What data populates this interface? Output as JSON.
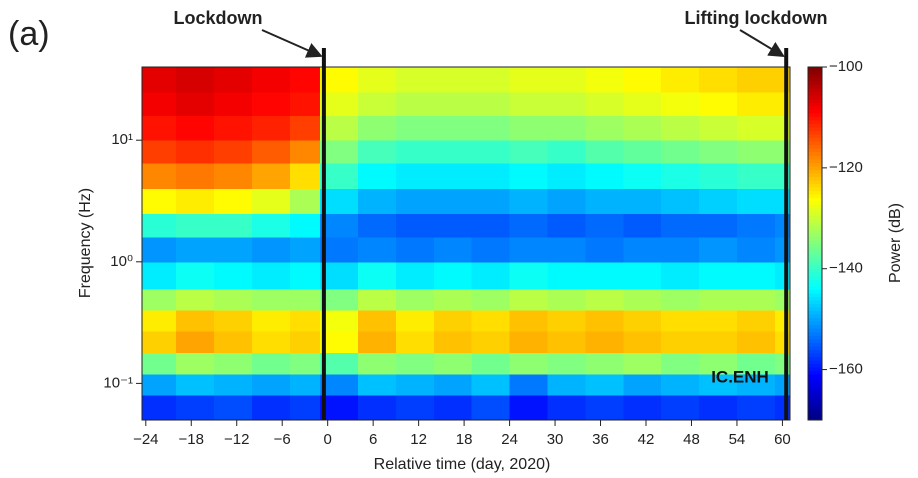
{
  "chart_data": {
    "type": "heatmap",
    "panel_label": "(a)",
    "xlabel": "Relative time (day, 2020)",
    "ylabel": "Frequency (Hz)",
    "colorbar_label": "Power (dB)",
    "station": "IC.ENH",
    "colormap": "jet",
    "ylog": true,
    "xlim": [
      -24.5,
      61
    ],
    "ylim": [
      0.05,
      40
    ],
    "clim": [
      -170,
      -100
    ],
    "xticks": [
      {
        "value": -24,
        "label": "−24"
      },
      {
        "value": -18,
        "label": "−18"
      },
      {
        "value": -12,
        "label": "−12"
      },
      {
        "value": -6,
        "label": "−6"
      },
      0,
      6,
      12,
      18,
      24,
      30,
      36,
      42,
      48,
      54,
      60
    ],
    "yticks": [
      {
        "value": 0.1,
        "label": "10⁻¹"
      },
      {
        "value": 1,
        "label": "10⁰"
      },
      {
        "value": 10,
        "label": "10¹"
      }
    ],
    "cticks": [
      {
        "value": -100,
        "label": "−100"
      },
      {
        "value": -120,
        "label": "−120"
      },
      {
        "value": -140,
        "label": "−140"
      },
      {
        "value": -160,
        "label": "−160"
      }
    ],
    "events": [
      {
        "label": "Lockdown",
        "x": -0.5
      },
      {
        "label": "Lifting lockdown",
        "x": 60.5
      }
    ],
    "x_bins": [
      -24.5,
      -20,
      -15,
      -10,
      -5,
      -1,
      4,
      9,
      14,
      19,
      24,
      29,
      34,
      39,
      44,
      49,
      54,
      59,
      61
    ],
    "y_bins": [
      0.05,
      0.08,
      0.12,
      0.18,
      0.27,
      0.4,
      0.6,
      1,
      1.6,
      2.5,
      4,
      6.5,
      10,
      16,
      25,
      40
    ],
    "values": [
      [
        -158,
        -157,
        -156,
        -158,
        -157,
        -160,
        -158,
        -157,
        -158,
        -156,
        -160,
        -158,
        -157,
        -158,
        -157,
        -158,
        -157,
        -158
      ],
      [
        -150,
        -148,
        -149,
        -150,
        -149,
        -152,
        -148,
        -149,
        -150,
        -148,
        -153,
        -149,
        -148,
        -150,
        -149,
        -148,
        -149,
        -150
      ],
      [
        -136,
        -133,
        -134,
        -136,
        -135,
        -138,
        -134,
        -135,
        -134,
        -136,
        -134,
        -135,
        -134,
        -133,
        -135,
        -134,
        -136,
        -135
      ],
      [
        -123,
        -120,
        -122,
        -124,
        -123,
        -126,
        -121,
        -124,
        -122,
        -123,
        -121,
        -122,
        -121,
        -122,
        -123,
        -123,
        -122,
        -124
      ],
      [
        -125,
        -122,
        -123,
        -125,
        -124,
        -127,
        -122,
        -125,
        -123,
        -124,
        -122,
        -123,
        -122,
        -123,
        -124,
        -124,
        -123,
        -125
      ],
      [
        -133,
        -131,
        -132,
        -133,
        -133,
        -135,
        -131,
        -133,
        -132,
        -133,
        -131,
        -132,
        -131,
        -132,
        -133,
        -132,
        -132,
        -133
      ],
      [
        -145,
        -143,
        -144,
        -145,
        -144,
        -146,
        -143,
        -145,
        -144,
        -145,
        -143,
        -144,
        -144,
        -144,
        -145,
        -144,
        -144,
        -145
      ],
      [
        -151,
        -150,
        -150,
        -151,
        -150,
        -153,
        -152,
        -153,
        -152,
        -153,
        -152,
        -152,
        -153,
        -152,
        -152,
        -151,
        -152,
        -151
      ],
      [
        -141,
        -140,
        -140,
        -142,
        -144,
        -152,
        -154,
        -155,
        -155,
        -155,
        -154,
        -155,
        -154,
        -155,
        -154,
        -154,
        -153,
        -152
      ],
      [
        -126,
        -125,
        -126,
        -128,
        -132,
        -146,
        -149,
        -150,
        -150,
        -150,
        -149,
        -150,
        -149,
        -149,
        -148,
        -147,
        -146,
        -146
      ],
      [
        -118,
        -117,
        -118,
        -120,
        -124,
        -140,
        -144,
        -145,
        -145,
        -145,
        -144,
        -145,
        -144,
        -143,
        -142,
        -141,
        -140,
        -140
      ],
      [
        -113,
        -112,
        -113,
        -115,
        -118,
        -135,
        -139,
        -140,
        -140,
        -140,
        -139,
        -140,
        -138,
        -137,
        -136,
        -135,
        -134,
        -134
      ],
      [
        -110,
        -109,
        -110,
        -111,
        -113,
        -131,
        -134,
        -135,
        -135,
        -135,
        -134,
        -134,
        -133,
        -132,
        -131,
        -130,
        -129,
        -129
      ],
      [
        -108,
        -107,
        -108,
        -109,
        -110,
        -128,
        -130,
        -131,
        -131,
        -131,
        -130,
        -130,
        -129,
        -128,
        -127,
        -126,
        -125,
        -125
      ],
      [
        -107,
        -106,
        -107,
        -108,
        -109,
        -126,
        -128,
        -129,
        -129,
        -129,
        -128,
        -128,
        -127,
        -126,
        -125,
        -124,
        -123,
        -123
      ]
    ]
  }
}
